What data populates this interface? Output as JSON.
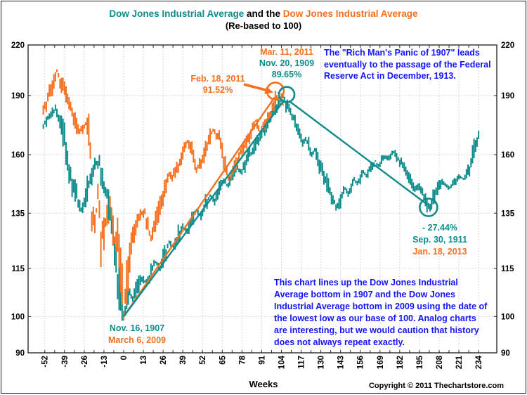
{
  "title": {
    "part1": "Dow Jones Industrial Average",
    "part2": " and the ",
    "part3": "Dow Jones Industrial Average",
    "subtitle": "(Re-based to 100)"
  },
  "axis": {
    "x_label": "Weeks"
  },
  "footer": {
    "copyright": "Copyright © 2011 Thechartstore.com"
  },
  "annotations": {
    "peak": {
      "l1": "Mar. 11, 2011",
      "l2": "Nov. 20, 1909",
      "l3": "89.65%"
    },
    "feb": {
      "l1": "Feb. 18, 2011",
      "l2": "91.52%"
    },
    "panic": {
      "l1": "The \"Rich Man's Panic of 1907\" leads",
      "l2": "eventually to the passage of the Federal",
      "l3": "Reserve Act in December, 1913."
    },
    "decline": {
      "l1": "- 27.44%",
      "l2": "Sep. 30, 1911",
      "l3": "Jan. 18, 2013"
    },
    "bottoms": {
      "l1": "Nov. 16, 1907",
      "l2": "March 6, 2009"
    },
    "comment": {
      "l1": "This chart lines up the Dow Jones Industrial",
      "l2": "Average bottom in 1907 and the Dow Jones",
      "l3": "Industrial Average bottom in 2009 using the date of",
      "l4": "the lowest low as our base of 100.  Analog charts",
      "l5": "are interesting, but we would caution that history",
      "l6": "does not always repeat exactly."
    }
  },
  "colors": {
    "teal": "#0E8C8C",
    "orange": "#F4701F",
    "blue": "#1414FF",
    "grid": "#D6D6D6",
    "border": "#2b2b2b",
    "text": "#000000"
  },
  "chart_data": {
    "type": "bar",
    "subtype": "weekly high-low price bars, two analog series re-based to 100 at their lows",
    "xlabel": "Weeks",
    "x_ticks": [
      -52,
      -39,
      -26,
      -13,
      0,
      13,
      26,
      39,
      52,
      65,
      78,
      91,
      104,
      117,
      130,
      143,
      156,
      169,
      182,
      195,
      208,
      221,
      234
    ],
    "y_ticks": [
      220,
      190,
      160,
      135,
      115,
      100,
      90
    ],
    "x_range": [
      -63,
      246
    ],
    "y_range": [
      90,
      220
    ],
    "y_scale": "log",
    "minor_x_tick_step": 6.5,
    "series": [
      {
        "name": "Dow Jones Industrial Average (1907 analog, base Nov. 16, 1907 = 100)",
        "color_key": "teal",
        "start": -53,
        "end": 234,
        "seed": 1,
        "anchors": [
          [
            -53,
            174
          ],
          [
            -50,
            178
          ],
          [
            -47,
            181
          ],
          [
            -45,
            183
          ],
          [
            -43,
            179
          ],
          [
            -40,
            170
          ],
          [
            -37,
            158
          ],
          [
            -34,
            148
          ],
          [
            -31,
            142
          ],
          [
            -28,
            136
          ],
          [
            -26,
            139
          ],
          [
            -24,
            145
          ],
          [
            -22,
            150
          ],
          [
            -20,
            153
          ],
          [
            -18,
            157
          ],
          [
            -16,
            155
          ],
          [
            -14,
            149
          ],
          [
            -12,
            145
          ],
          [
            -10,
            139
          ],
          [
            -8,
            131
          ],
          [
            -6,
            121
          ],
          [
            -4,
            111
          ],
          [
            -2,
            104
          ],
          [
            0,
            100
          ],
          [
            2,
            104
          ],
          [
            4,
            107
          ],
          [
            6,
            105
          ],
          [
            9,
            109
          ],
          [
            12,
            112
          ],
          [
            15,
            110
          ],
          [
            18,
            114
          ],
          [
            21,
            117
          ],
          [
            24,
            115
          ],
          [
            27,
            120
          ],
          [
            30,
            124
          ],
          [
            33,
            122
          ],
          [
            36,
            127
          ],
          [
            39,
            130
          ],
          [
            42,
            128
          ],
          [
            45,
            133
          ],
          [
            48,
            136
          ],
          [
            51,
            134
          ],
          [
            54,
            139
          ],
          [
            57,
            142
          ],
          [
            60,
            140
          ],
          [
            63,
            145
          ],
          [
            66,
            148
          ],
          [
            69,
            146
          ],
          [
            72,
            151
          ],
          [
            75,
            154
          ],
          [
            78,
            152
          ],
          [
            81,
            157
          ],
          [
            84,
            161
          ],
          [
            87,
            165
          ],
          [
            90,
            169
          ],
          [
            93,
            172
          ],
          [
            96,
            176
          ],
          [
            99,
            181
          ],
          [
            102,
            186
          ],
          [
            105,
            189.7
          ],
          [
            107,
            186
          ],
          [
            110,
            181
          ],
          [
            113,
            176
          ],
          [
            116,
            170
          ],
          [
            118,
            166
          ],
          [
            120,
            167
          ],
          [
            122,
            164
          ],
          [
            124,
            160
          ],
          [
            126,
            162
          ],
          [
            128,
            158
          ],
          [
            130,
            154
          ],
          [
            132,
            151
          ],
          [
            134,
            147
          ],
          [
            136,
            144
          ],
          [
            138,
            141
          ],
          [
            140,
            137
          ],
          [
            142,
            139
          ],
          [
            144,
            142
          ],
          [
            146,
            145
          ],
          [
            148,
            143
          ],
          [
            150,
            146
          ],
          [
            152,
            149
          ],
          [
            154,
            147
          ],
          [
            156,
            150
          ],
          [
            158,
            152
          ],
          [
            160,
            151
          ],
          [
            162,
            153
          ],
          [
            164,
            155
          ],
          [
            166,
            157
          ],
          [
            168,
            155
          ],
          [
            170,
            157
          ],
          [
            172,
            159
          ],
          [
            174,
            158
          ],
          [
            176,
            160
          ],
          [
            178,
            161
          ],
          [
            180,
            159
          ],
          [
            182,
            157
          ],
          [
            184,
            155
          ],
          [
            186,
            153
          ],
          [
            188,
            150
          ],
          [
            190,
            147
          ],
          [
            192,
            145
          ],
          [
            194,
            146
          ],
          [
            196,
            144
          ],
          [
            198,
            142
          ],
          [
            200,
            139
          ],
          [
            202,
            137
          ],
          [
            204,
            141
          ],
          [
            206,
            144
          ],
          [
            208,
            146
          ],
          [
            210,
            148
          ],
          [
            212,
            147
          ],
          [
            214,
            145
          ],
          [
            216,
            146
          ],
          [
            218,
            148
          ],
          [
            220,
            149
          ],
          [
            222,
            150
          ],
          [
            224,
            149
          ],
          [
            226,
            151
          ],
          [
            228,
            154
          ],
          [
            230,
            159
          ],
          [
            232,
            164
          ],
          [
            234,
            169
          ]
        ]
      },
      {
        "name": "Dow Jones Industrial Average (2009 analog, base March 6, 2009 = 100)",
        "color_key": "orange",
        "start": -53,
        "end": 105,
        "seed": 2,
        "anchors": [
          [
            -53,
            182
          ],
          [
            -50,
            188
          ],
          [
            -47,
            196
          ],
          [
            -44,
            204
          ],
          [
            -42,
            199
          ],
          [
            -39,
            193
          ],
          [
            -36,
            186
          ],
          [
            -33,
            179
          ],
          [
            -30,
            172
          ],
          [
            -27,
            172
          ],
          [
            -25,
            175
          ],
          [
            -23,
            171
          ],
          [
            -22,
            160
          ],
          [
            -21,
            132
          ],
          [
            -20,
            137
          ],
          [
            -19,
            130
          ],
          [
            -18,
            136
          ],
          [
            -17,
            144
          ],
          [
            -16,
            138
          ],
          [
            -15,
            120
          ],
          [
            -14,
            128
          ],
          [
            -13,
            126
          ],
          [
            -12,
            132
          ],
          [
            -11,
            133
          ],
          [
            -10,
            132
          ],
          [
            -9,
            139
          ],
          [
            -8,
            133
          ],
          [
            -7,
            128
          ],
          [
            -6,
            125
          ],
          [
            -5,
            123
          ],
          [
            -4,
            127
          ],
          [
            -3,
            121
          ],
          [
            -2,
            113
          ],
          [
            -1,
            108
          ],
          [
            0,
            101
          ],
          [
            1,
            106
          ],
          [
            2,
            110
          ],
          [
            4,
            118
          ],
          [
            6,
            124
          ],
          [
            8,
            129
          ],
          [
            10,
            133
          ],
          [
            12,
            135
          ],
          [
            14,
            135
          ],
          [
            16,
            130
          ],
          [
            18,
            126
          ],
          [
            20,
            129
          ],
          [
            22,
            134
          ],
          [
            24,
            139
          ],
          [
            26,
            143
          ],
          [
            28,
            147
          ],
          [
            30,
            151
          ],
          [
            32,
            150
          ],
          [
            34,
            153
          ],
          [
            36,
            155
          ],
          [
            38,
            158
          ],
          [
            40,
            163
          ],
          [
            42,
            166
          ],
          [
            44,
            164
          ],
          [
            46,
            159
          ],
          [
            48,
            154
          ],
          [
            50,
            156
          ],
          [
            52,
            158
          ],
          [
            54,
            162
          ],
          [
            56,
            166
          ],
          [
            58,
            170
          ],
          [
            59,
            172
          ],
          [
            61,
            169
          ],
          [
            63,
            168
          ],
          [
            65,
            161
          ],
          [
            67,
            154
          ],
          [
            69,
            150
          ],
          [
            71,
            151
          ],
          [
            73,
            154
          ],
          [
            75,
            158
          ],
          [
            77,
            161
          ],
          [
            79,
            163
          ],
          [
            81,
            166
          ],
          [
            83,
            169
          ],
          [
            85,
            173
          ],
          [
            87,
            176
          ],
          [
            89,
            173
          ],
          [
            90,
            171
          ],
          [
            92,
            174
          ],
          [
            94,
            177
          ],
          [
            96,
            179
          ],
          [
            98,
            183
          ],
          [
            100,
            187
          ],
          [
            102,
            191.5
          ],
          [
            103,
            189
          ],
          [
            105,
            186
          ]
        ]
      }
    ],
    "key_points": [
      {
        "label": "Nov. 16, 1907 / March 6, 2009",
        "week": 0,
        "value": 100
      },
      {
        "label": "Feb. 18, 2011",
        "week": 102,
        "value": 191.52,
        "gain_pct": 91.52
      },
      {
        "label": "Nov. 20, 1909",
        "week": 105,
        "value": 189.65,
        "gain_pct": 89.65
      },
      {
        "label": "Sep. 30, 1911 (analog date Jan. 18, 2013)",
        "week": 201,
        "value": 137.6,
        "change_pct": -27.44
      }
    ],
    "trend_lines": [
      {
        "from": [
          0,
          100
        ],
        "to": [
          99.5,
          189
        ],
        "color_key": "orange"
      },
      {
        "from": [
          0,
          100
        ],
        "to": [
          105,
          186.5
        ],
        "color_key": "teal"
      },
      {
        "from": [
          109,
          187
        ],
        "to": [
          200,
          138.5
        ],
        "color_key": "teal"
      }
    ],
    "circles": [
      {
        "at": [
          100,
          192.5
        ],
        "r": 12,
        "color_key": "orange"
      },
      {
        "at": [
          107.5,
          190.5
        ],
        "r": 11,
        "color_key": "teal"
      },
      {
        "at": [
          201,
          137.3
        ],
        "r": 12.5,
        "color_key": "teal"
      }
    ]
  }
}
